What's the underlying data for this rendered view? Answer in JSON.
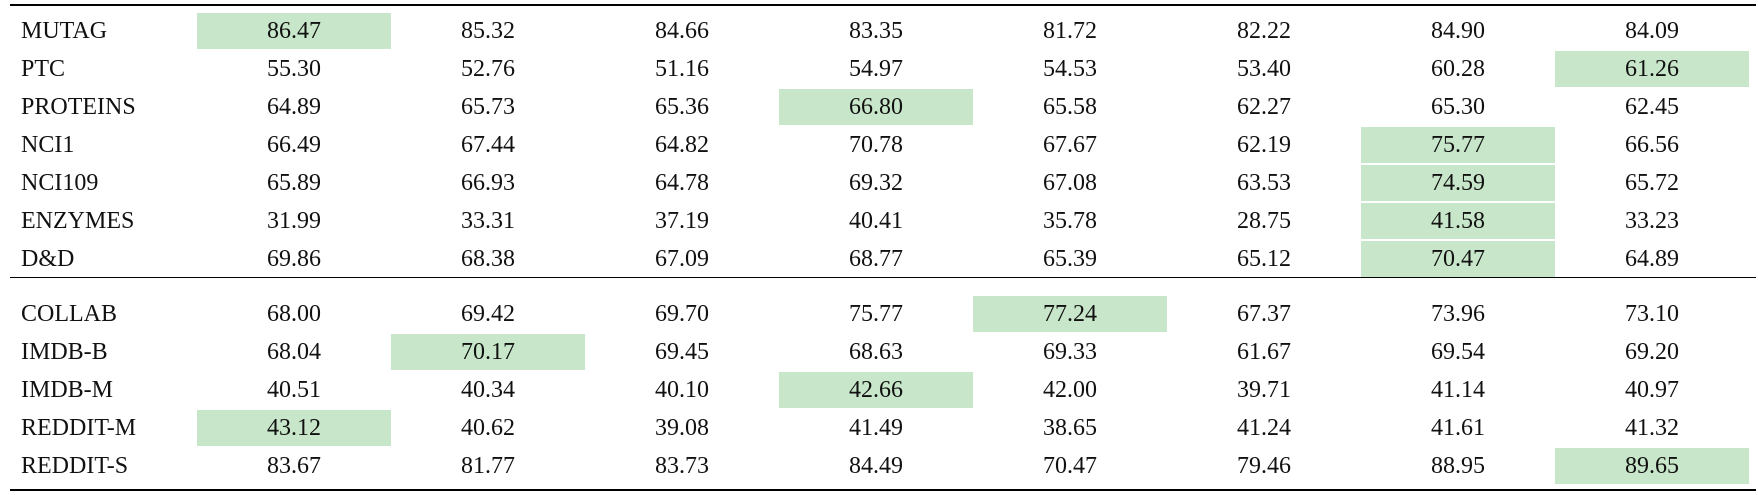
{
  "table": {
    "groups": [
      {
        "rows": [
          {
            "label": "MUTAG",
            "values": [
              "86.47",
              "85.32",
              "84.66",
              "83.35",
              "81.72",
              "82.22",
              "84.90",
              "84.09"
            ]
          },
          {
            "label": "PTC",
            "values": [
              "55.30",
              "52.76",
              "51.16",
              "54.97",
              "54.53",
              "53.40",
              "60.28",
              "61.26"
            ]
          },
          {
            "label": "PROTEINS",
            "values": [
              "64.89",
              "65.73",
              "65.36",
              "66.80",
              "65.58",
              "62.27",
              "65.30",
              "62.45"
            ]
          },
          {
            "label": "NCI1",
            "values": [
              "66.49",
              "67.44",
              "64.82",
              "70.78",
              "67.67",
              "62.19",
              "75.77",
              "66.56"
            ]
          },
          {
            "label": "NCI109",
            "values": [
              "65.89",
              "66.93",
              "64.78",
              "69.32",
              "67.08",
              "63.53",
              "74.59",
              "65.72"
            ]
          },
          {
            "label": "ENZYMES",
            "values": [
              "31.99",
              "33.31",
              "37.19",
              "40.41",
              "35.78",
              "28.75",
              "41.58",
              "33.23"
            ]
          },
          {
            "label": "D&D",
            "values": [
              "69.86",
              "68.38",
              "67.09",
              "68.77",
              "65.39",
              "65.12",
              "70.47",
              "64.89"
            ]
          }
        ]
      },
      {
        "rows": [
          {
            "label": "COLLAB",
            "values": [
              "68.00",
              "69.42",
              "69.70",
              "75.77",
              "77.24",
              "67.37",
              "73.96",
              "73.10"
            ]
          },
          {
            "label": "IMDB-B",
            "values": [
              "68.04",
              "70.17",
              "69.45",
              "68.63",
              "69.33",
              "61.67",
              "69.54",
              "69.20"
            ]
          },
          {
            "label": "IMDB-M",
            "values": [
              "40.51",
              "40.34",
              "40.10",
              "42.66",
              "42.00",
              "39.71",
              "41.14",
              "40.97"
            ]
          },
          {
            "label": "REDDIT-M",
            "values": [
              "43.12",
              "40.62",
              "39.08",
              "41.49",
              "38.65",
              "41.24",
              "41.61",
              "41.32"
            ]
          },
          {
            "label": "REDDIT-S",
            "values": [
              "83.67",
              "81.77",
              "83.73",
              "84.49",
              "70.47",
              "79.46",
              "88.95",
              "89.65"
            ]
          }
        ]
      }
    ]
  }
}
